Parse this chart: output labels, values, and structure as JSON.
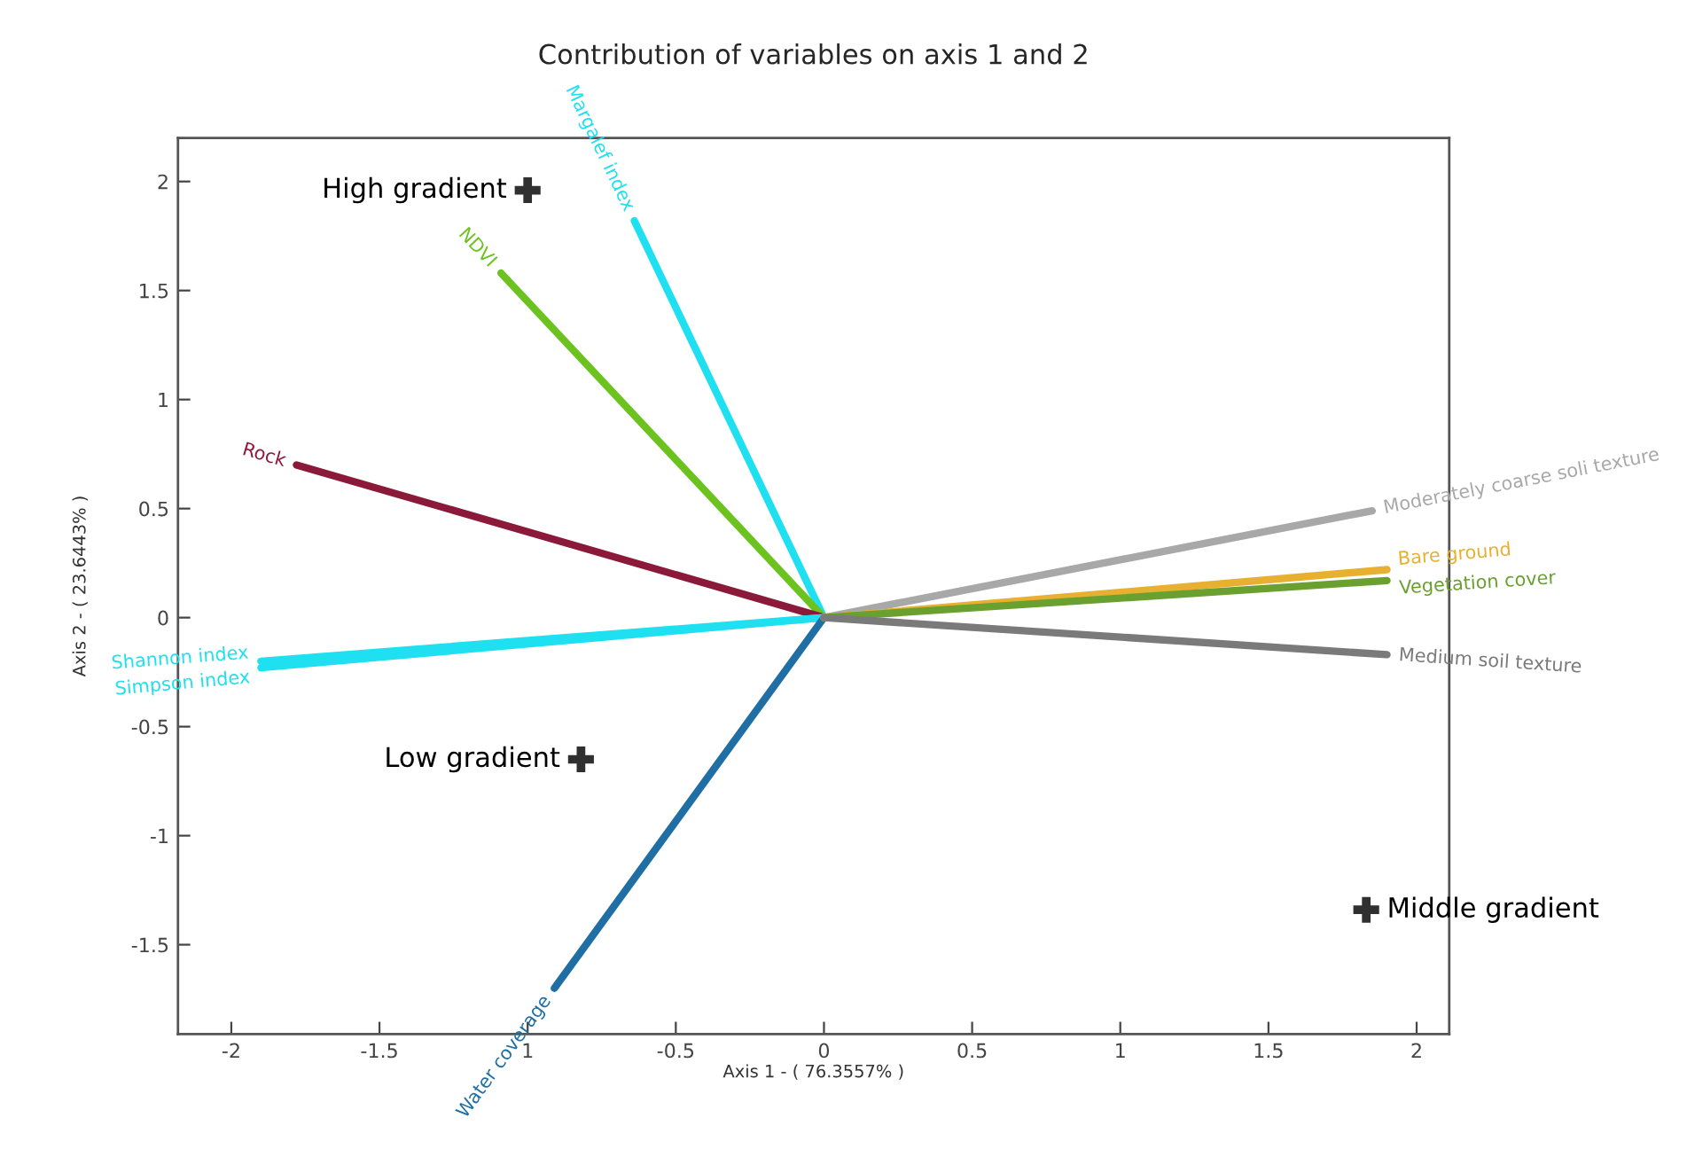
{
  "chart_data": {
    "type": "line",
    "title": "Contribution of variables on axis 1 and 2",
    "xlabel": "Axis 1 - ( 76.3557% )",
    "ylabel": "Axis 2 - ( 23.6443% )",
    "xlim": [
      -2.18,
      2.11
    ],
    "ylim": [
      -1.91,
      2.2
    ],
    "xticks": [
      -2,
      -1.5,
      {
        "value": -1,
        "label": "1"
      },
      -0.5,
      0,
      0.5,
      1,
      1.5,
      2
    ],
    "yticks": [
      -1.5,
      -1,
      -0.5,
      0,
      0.5,
      1,
      1.5,
      2
    ],
    "grid": false,
    "legend": false,
    "series": [
      {
        "name": "Margalef index",
        "color": "#1fe0f0",
        "x": [
          0,
          -0.64
        ],
        "values": [
          0,
          1.82
        ]
      },
      {
        "name": "NDVI",
        "color": "#6cc21e",
        "x": [
          0,
          -1.09
        ],
        "values": [
          0,
          1.58
        ]
      },
      {
        "name": "Rock",
        "color": "#8b1a3a",
        "x": [
          0,
          -1.78
        ],
        "values": [
          0,
          0.7
        ]
      },
      {
        "name": "Shannon index",
        "color": "#1fe0f0",
        "x": [
          0,
          -1.9
        ],
        "values": [
          0,
          -0.2
        ]
      },
      {
        "name": "Simpson index",
        "color": "#1fe0f0",
        "x": [
          0,
          -1.9
        ],
        "values": [
          0,
          -0.23
        ]
      },
      {
        "name": "Water coverage",
        "color": "#1f6fa5",
        "x": [
          0,
          -0.91
        ],
        "values": [
          0,
          -1.7
        ]
      },
      {
        "name": "Moderately coarse soli texture",
        "color": "#a8a8a8",
        "x": [
          0,
          1.85
        ],
        "values": [
          0,
          0.49
        ]
      },
      {
        "name": "Bare ground",
        "color": "#e8b030",
        "x": [
          0,
          1.9
        ],
        "values": [
          0,
          0.22
        ]
      },
      {
        "name": "Vegetation cover",
        "color": "#6aa030",
        "x": [
          0,
          1.9
        ],
        "values": [
          0,
          0.17
        ]
      },
      {
        "name": "Medium soil texture",
        "color": "#7a7a7a",
        "x": [
          0,
          1.9
        ],
        "values": [
          0,
          -0.17
        ]
      },
      {
        "type": "scatter",
        "name": "High gradient",
        "color": "#303030",
        "marker": "cross",
        "x": [
          -1.0
        ],
        "values": [
          1.96
        ]
      },
      {
        "type": "scatter",
        "name": "Low gradient",
        "color": "#303030",
        "marker": "cross",
        "x": [
          -0.82
        ],
        "values": [
          -0.65
        ]
      },
      {
        "type": "scatter",
        "name": "Middle gradient",
        "color": "#303030",
        "marker": "cross",
        "x": [
          1.83
        ],
        "values": [
          -1.34
        ]
      }
    ]
  }
}
